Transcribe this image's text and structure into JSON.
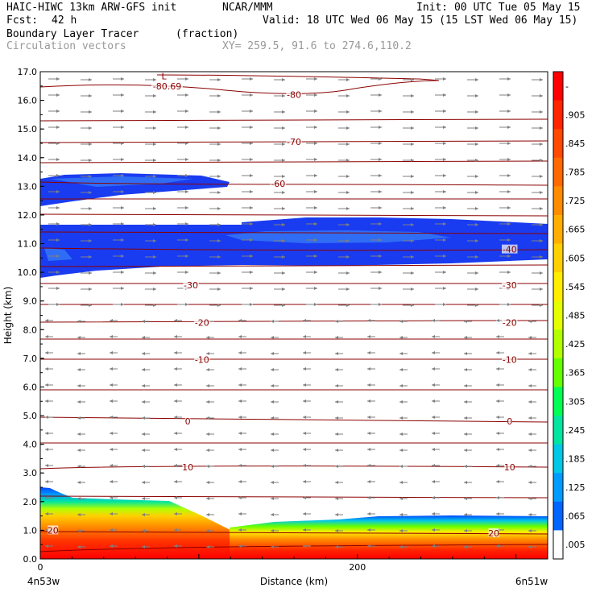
{
  "header": {
    "model": "HAIC-HIWC 13km ARW-GFS init",
    "org": "NCAR/MMM",
    "init": "Init: 00 UTC Tue 05 May 15",
    "fcst_label": "Fcst:",
    "fcst_value": "42 h",
    "valid": "Valid: 18 UTC Wed 06 May 15 (15 LST Wed 06 May 15)",
    "field": "Boundary Layer Tracer",
    "field_units": "(fraction)",
    "vectors": "Circulation vectors",
    "xy": "XY= 259.5, 91.6 to 274.6,110.2"
  },
  "chart_data": {
    "type": "heatmap",
    "xlabel": "Distance (km)",
    "ylabel": "Height (km)",
    "xlim": [
      0,
      320
    ],
    "ylim": [
      0,
      17
    ],
    "x_ticks": [
      "0",
      "200"
    ],
    "y_ticks": [
      "0.0",
      "1.0",
      "2.0",
      "3.0",
      "4.0",
      "5.0",
      "6.0",
      "7.0",
      "8.0",
      "9.0",
      "10.0",
      "11.0",
      "12.0",
      "13.0",
      "14.0",
      "15.0",
      "16.0",
      "17.0"
    ],
    "left_label": "4n53w",
    "right_label": "6n51w",
    "colorbar": {
      "labels": [
        "-",
        ".905",
        ".845",
        ".785",
        ".725",
        ".665",
        ".605",
        ".545",
        ".485",
        ".425",
        ".365",
        ".305",
        ".245",
        ".185",
        ".125",
        ".065",
        ".005"
      ],
      "colors": [
        "#ff0000",
        "#ff2400",
        "#ff4800",
        "#ff6a00",
        "#ff8c00",
        "#ffae00",
        "#ffd000",
        "#ffee00",
        "#e6ff00",
        "#b2ff00",
        "#66ff00",
        "#00ff55",
        "#00e6a0",
        "#00c8e6",
        "#009bff",
        "#0066ff",
        "#ffffff"
      ]
    },
    "contour_labels": [
      {
        "text": "-80.69",
        "x": 80,
        "y": 16.5
      },
      {
        "text": "L",
        "x": 78,
        "y": 16.85
      },
      {
        "text": "-80",
        "x": 160,
        "y": 16.2
      },
      {
        "text": "-70",
        "x": 160,
        "y": 14.55
      },
      {
        "text": "-60",
        "x": 150,
        "y": 13.1
      },
      {
        "text": "-40",
        "x": 296,
        "y": 10.8
      },
      {
        "text": "-30",
        "x": 95,
        "y": 9.55
      },
      {
        "text": "-30",
        "x": 296,
        "y": 9.55
      },
      {
        "text": "-20",
        "x": 102,
        "y": 8.25
      },
      {
        "text": "-20",
        "x": 296,
        "y": 8.25
      },
      {
        "text": "-10",
        "x": 102,
        "y": 6.95
      },
      {
        "text": "-10",
        "x": 296,
        "y": 6.95
      },
      {
        "text": "0",
        "x": 93,
        "y": 4.8
      },
      {
        "text": "0",
        "x": 296,
        "y": 4.8
      },
      {
        "text": "10",
        "x": 93,
        "y": 3.2
      },
      {
        "text": "10",
        "x": 296,
        "y": 3.2
      },
      {
        "text": "20",
        "x": 8,
        "y": 1.0
      },
      {
        "text": "20",
        "x": 286,
        "y": 0.9
      }
    ]
  }
}
